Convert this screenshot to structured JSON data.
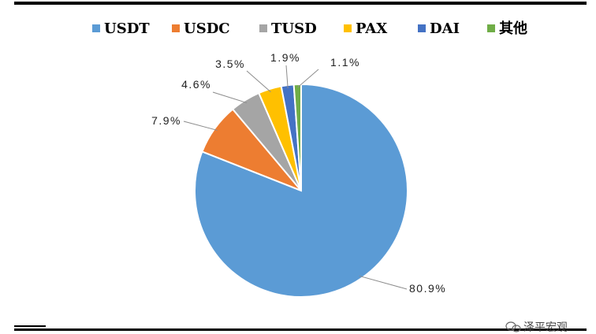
{
  "chart_data": {
    "type": "pie",
    "categories": [
      "USDT",
      "USDC",
      "TUSD",
      "PAX",
      "DAI",
      "其他"
    ],
    "values": [
      80.9,
      7.9,
      4.6,
      3.5,
      1.9,
      1.1
    ],
    "labels": [
      "80.9%",
      "7.9%",
      "4.6%",
      "3.5%",
      "1.9%",
      "1.1%"
    ],
    "colors": [
      "#5b9bd5",
      "#ed7d31",
      "#a5a5a5",
      "#ffc000",
      "#4472c4",
      "#70ad47"
    ],
    "legend_position": "top",
    "start_angle": "12 o'clock",
    "direction": "clockwise"
  },
  "watermark": {
    "icon": "wechat-icon",
    "text": "泽平宏观"
  }
}
